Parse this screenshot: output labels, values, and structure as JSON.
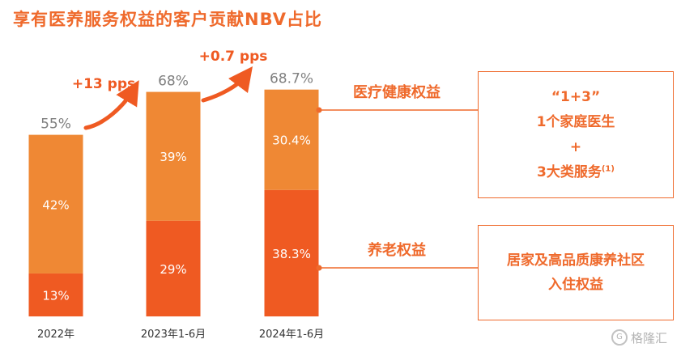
{
  "title": "享有医养服务权益的客户贡献NBV占比",
  "colors": {
    "accent": "#EF6A2C",
    "top_segment": "#EF8834",
    "bottom_segment": "#EF5A22",
    "label_grey": "#7F7F7F"
  },
  "chart_data": {
    "type": "bar",
    "stacked": true,
    "categories": [
      "2022年",
      "2023年1-6月",
      "2024年1-6月"
    ],
    "series": [
      {
        "name": "养老权益",
        "values": [
          13,
          29,
          38.3
        ],
        "labels": [
          "13%",
          "29%",
          "38.3%"
        ]
      },
      {
        "name": "医疗健康权益",
        "values": [
          42,
          39,
          30.4
        ],
        "labels": [
          "42%",
          "39%",
          "30.4%"
        ]
      }
    ],
    "totals": [
      55,
      68,
      68.7
    ],
    "total_labels": [
      "55%",
      "68%",
      "68.7%"
    ],
    "growth_annotations": [
      "+13 pps",
      "+0.7 pps"
    ],
    "ylim": [
      0,
      70
    ]
  },
  "callouts": {
    "medical": {
      "label": "医疗健康权益",
      "line1": "“1+3”",
      "line2": "1个家庭医生",
      "line3": "+",
      "line4": "3大类服务",
      "footnote": "(1)"
    },
    "elderly": {
      "label": "养老权益",
      "line1": "居家及高品质康养社区",
      "line2": "入住权益"
    }
  },
  "watermark": {
    "text": "格隆汇",
    "icon": "G"
  }
}
